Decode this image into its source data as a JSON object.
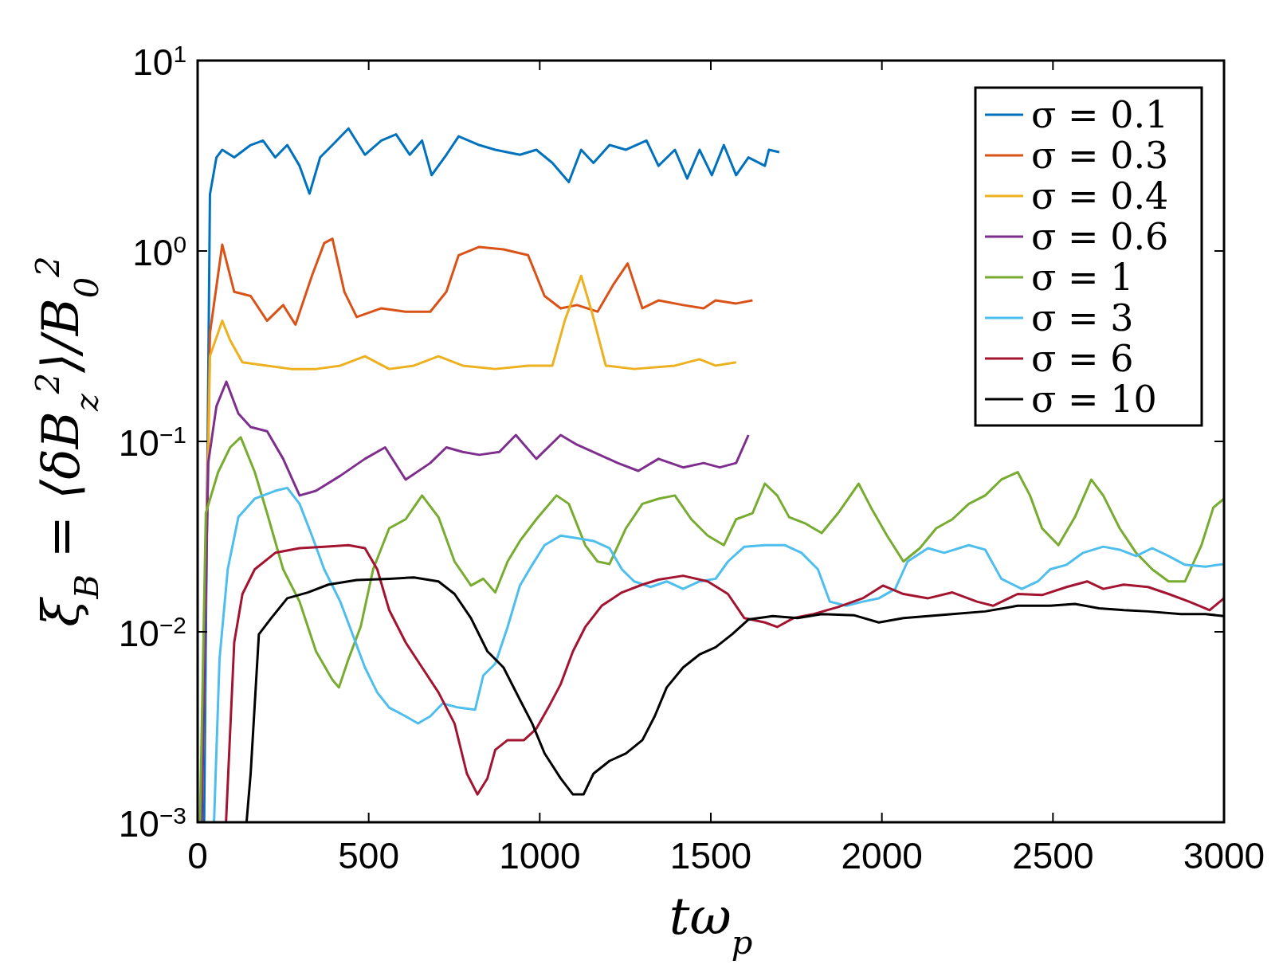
{
  "chart_data": {
    "type": "line",
    "xlabel": "tω$_{p}$",
    "ylabel": "ξ$_{B}$ = ⟨δB$_{z}$$^{2}$⟩/B$_{0}$$^{2}$",
    "log": "y",
    "legend": "top right",
    "grid": false,
    "xlim": [
      0,
      3000
    ],
    "xticks": [
      0,
      500,
      1000,
      1500,
      2000,
      2500,
      3000
    ],
    "ylim": [
      0.001,
      10
    ],
    "yticks": [
      {
        "value": 0.001,
        "label": "10$^{−3}$"
      },
      {
        "value": 0.01,
        "label": "10$^{−2}$"
      },
      {
        "value": 0.1,
        "label": "10$^{−1}$"
      },
      {
        "value": 1,
        "label": "10$^{0}$"
      },
      {
        "value": 10,
        "label": "10$^{1}$"
      }
    ],
    "series": [
      {
        "name": "σ = 0.1",
        "color": "#0072bd",
        "x": [
          19,
          36,
          55,
          72,
          107,
          155,
          191,
          227,
          262,
          298,
          327,
          358,
          394,
          441,
          489,
          537,
          580,
          620,
          656,
          684,
          727,
          763,
          823,
          870,
          942,
          990,
          1037,
          1085,
          1121,
          1157,
          1204,
          1252,
          1312,
          1347,
          1395,
          1431,
          1467,
          1503,
          1538,
          1574,
          1610,
          1658,
          1670,
          1700
        ],
        "values": [
          0.001,
          1.98,
          3.1,
          3.4,
          3.1,
          3.6,
          3.8,
          3.1,
          3.6,
          2.8,
          2.0,
          3.1,
          3.6,
          4.4,
          3.2,
          3.8,
          4.1,
          3.2,
          3.8,
          2.5,
          3.2,
          4.0,
          3.6,
          3.4,
          3.2,
          3.4,
          2.9,
          2.3,
          3.4,
          2.9,
          3.6,
          3.4,
          3.8,
          2.8,
          3.4,
          2.4,
          3.4,
          2.5,
          3.6,
          2.5,
          3.1,
          2.8,
          3.4,
          3.3
        ]
      },
      {
        "name": "σ = 0.3",
        "color": "#d95319",
        "x": [
          12,
          36,
          72,
          107,
          155,
          203,
          250,
          286,
          334,
          370,
          394,
          429,
          465,
          537,
          608,
          680,
          727,
          763,
          823,
          894,
          966,
          1014,
          1061,
          1109,
          1169,
          1216,
          1257,
          1300,
          1347,
          1419,
          1479,
          1514,
          1574,
          1622
        ],
        "values": [
          0.001,
          0.37,
          1.08,
          0.61,
          0.58,
          0.43,
          0.52,
          0.41,
          0.74,
          1.1,
          1.16,
          0.61,
          0.45,
          0.5,
          0.48,
          0.48,
          0.61,
          0.95,
          1.05,
          1.02,
          0.95,
          0.58,
          0.5,
          0.52,
          0.48,
          0.67,
          0.86,
          0.5,
          0.55,
          0.52,
          0.5,
          0.55,
          0.53,
          0.55
        ]
      },
      {
        "name": "σ = 0.4",
        "color": "#edb120",
        "x": [
          12,
          36,
          72,
          95,
          131,
          203,
          274,
          346,
          417,
          489,
          560,
          632,
          704,
          775,
          870,
          966,
          1037,
          1073,
          1121,
          1152,
          1193,
          1276,
          1395,
          1467,
          1514,
          1574
        ],
        "values": [
          0.001,
          0.28,
          0.43,
          0.34,
          0.26,
          0.25,
          0.24,
          0.24,
          0.25,
          0.28,
          0.24,
          0.25,
          0.28,
          0.25,
          0.24,
          0.25,
          0.25,
          0.43,
          0.74,
          0.48,
          0.25,
          0.24,
          0.25,
          0.27,
          0.25,
          0.26
        ]
      },
      {
        "name": "σ = 0.6",
        "color": "#7e2f8e",
        "x": [
          12,
          31,
          55,
          84,
          119,
          155,
          203,
          250,
          298,
          346,
          417,
          489,
          548,
          608,
          680,
          727,
          775,
          823,
          882,
          930,
          990,
          1061,
          1109,
          1157,
          1228,
          1288,
          1347,
          1419,
          1479,
          1526,
          1574,
          1610
        ],
        "values": [
          0.001,
          0.077,
          0.153,
          0.206,
          0.14,
          0.119,
          0.113,
          0.081,
          0.052,
          0.055,
          0.066,
          0.081,
          0.093,
          0.063,
          0.077,
          0.093,
          0.088,
          0.085,
          0.088,
          0.108,
          0.081,
          0.108,
          0.096,
          0.088,
          0.077,
          0.07,
          0.081,
          0.073,
          0.077,
          0.073,
          0.077,
          0.108
        ]
      },
      {
        "name": "σ = 1",
        "color": "#77ac30",
        "x": [
          7,
          24,
          60,
          95,
          126,
          167,
          203,
          250,
          298,
          346,
          394,
          413,
          441,
          477,
          513,
          560,
          608,
          656,
          704,
          751,
          799,
          835,
          870,
          906,
          942,
          990,
          1049,
          1085,
          1133,
          1169,
          1204,
          1252,
          1300,
          1347,
          1395,
          1443,
          1491,
          1538,
          1574,
          1622,
          1658,
          1694,
          1729,
          1777,
          1824,
          1872,
          1932,
          1968,
          2015,
          2063,
          2111,
          2159,
          2206,
          2254,
          2302,
          2349,
          2397,
          2433,
          2468,
          2516,
          2564,
          2612,
          2647,
          2695,
          2743,
          2790,
          2838,
          2886,
          2934,
          2969,
          3000
        ],
        "values": [
          0.001,
          0.042,
          0.069,
          0.093,
          0.105,
          0.069,
          0.042,
          0.0213,
          0.0144,
          0.0079,
          0.0056,
          0.0051,
          0.0072,
          0.0107,
          0.0213,
          0.035,
          0.039,
          0.052,
          0.04,
          0.0234,
          0.0175,
          0.019,
          0.0161,
          0.0234,
          0.03,
          0.039,
          0.052,
          0.047,
          0.0285,
          0.0234,
          0.0227,
          0.035,
          0.047,
          0.05,
          0.052,
          0.039,
          0.032,
          0.0285,
          0.039,
          0.042,
          0.06,
          0.052,
          0.04,
          0.037,
          0.033,
          0.042,
          0.06,
          0.045,
          0.032,
          0.0234,
          0.0275,
          0.035,
          0.039,
          0.047,
          0.052,
          0.063,
          0.069,
          0.052,
          0.035,
          0.0285,
          0.04,
          0.063,
          0.052,
          0.035,
          0.026,
          0.0213,
          0.0184,
          0.0184,
          0.0285,
          0.045,
          0.05
        ]
      },
      {
        "name": "σ = 3",
        "color": "#4dbeee",
        "x": [
          48,
          64,
          88,
          119,
          167,
          227,
          262,
          298,
          334,
          370,
          417,
          453,
          489,
          525,
          560,
          608,
          644,
          680,
          716,
          763,
          811,
          835,
          870,
          906,
          942,
          978,
          1014,
          1061,
          1109,
          1157,
          1204,
          1240,
          1276,
          1324,
          1371,
          1419,
          1467,
          1514,
          1550,
          1598,
          1658,
          1717,
          1765,
          1813,
          1848,
          1896,
          1944,
          1991,
          2039,
          2075,
          2135,
          2182,
          2254,
          2302,
          2349,
          2409,
          2456,
          2492,
          2540,
          2588,
          2647,
          2695,
          2743,
          2790,
          2838,
          2886,
          2946,
          3000
        ],
        "values": [
          0.001,
          0.0072,
          0.0213,
          0.04,
          0.05,
          0.055,
          0.057,
          0.047,
          0.032,
          0.0213,
          0.0144,
          0.0097,
          0.0065,
          0.0048,
          0.004,
          0.0036,
          0.0033,
          0.0036,
          0.0042,
          0.004,
          0.0039,
          0.0059,
          0.0068,
          0.0106,
          0.0175,
          0.0225,
          0.0285,
          0.032,
          0.031,
          0.03,
          0.0275,
          0.0213,
          0.0184,
          0.0172,
          0.0184,
          0.0168,
          0.0184,
          0.019,
          0.0234,
          0.028,
          0.0285,
          0.0285,
          0.026,
          0.0213,
          0.0144,
          0.0137,
          0.0144,
          0.015,
          0.0168,
          0.0234,
          0.0275,
          0.026,
          0.0285,
          0.027,
          0.019,
          0.0168,
          0.0184,
          0.0213,
          0.0225,
          0.026,
          0.028,
          0.027,
          0.025,
          0.0275,
          0.025,
          0.0225,
          0.022,
          0.0227
        ]
      },
      {
        "name": "σ = 6",
        "color": "#a2142f",
        "x": [
          83,
          107,
          131,
          167,
          227,
          298,
          370,
          441,
          489,
          525,
          560,
          608,
          656,
          704,
          751,
          787,
          818,
          847,
          870,
          906,
          954,
          990,
          1025,
          1061,
          1097,
          1133,
          1181,
          1240,
          1300,
          1347,
          1419,
          1491,
          1550,
          1598,
          1658,
          1694,
          1741,
          1801,
          1872,
          1944,
          2003,
          2063,
          2135,
          2206,
          2278,
          2325,
          2397,
          2468,
          2540,
          2600,
          2647,
          2707,
          2778,
          2838,
          2898,
          2958,
          3000
        ],
        "values": [
          0.001,
          0.0088,
          0.0158,
          0.0213,
          0.026,
          0.0275,
          0.028,
          0.0285,
          0.0275,
          0.0213,
          0.013,
          0.0088,
          0.0065,
          0.0048,
          0.0033,
          0.0018,
          0.0014,
          0.0017,
          0.0024,
          0.0027,
          0.0027,
          0.0031,
          0.004,
          0.0053,
          0.0079,
          0.0106,
          0.0137,
          0.0161,
          0.0177,
          0.0188,
          0.0197,
          0.0184,
          0.0158,
          0.0118,
          0.0112,
          0.0106,
          0.0118,
          0.0124,
          0.0135,
          0.015,
          0.0175,
          0.0158,
          0.015,
          0.0161,
          0.0144,
          0.0137,
          0.0158,
          0.0156,
          0.0172,
          0.0184,
          0.0168,
          0.0177,
          0.0172,
          0.0158,
          0.0144,
          0.013,
          0.015
        ]
      },
      {
        "name": "σ = 10",
        "color": "#000000",
        "x": [
          143,
          155,
          179,
          215,
          262,
          322,
          382,
          465,
          560,
          632,
          704,
          751,
          799,
          847,
          894,
          942,
          978,
          1014,
          1061,
          1097,
          1128,
          1157,
          1204,
          1252,
          1300,
          1336,
          1371,
          1419,
          1467,
          1514,
          1562,
          1610,
          1681,
          1753,
          1824,
          1920,
          1991,
          2063,
          2135,
          2206,
          2302,
          2397,
          2492,
          2564,
          2635,
          2707,
          2778,
          2874,
          2946,
          3000
        ],
        "values": [
          0.001,
          0.0018,
          0.0097,
          0.0118,
          0.015,
          0.0161,
          0.0177,
          0.0187,
          0.019,
          0.0193,
          0.0184,
          0.0158,
          0.0118,
          0.0079,
          0.0065,
          0.0044,
          0.0033,
          0.0023,
          0.0017,
          0.0014,
          0.0014,
          0.0018,
          0.0021,
          0.0023,
          0.0027,
          0.0036,
          0.0051,
          0.0065,
          0.0076,
          0.0083,
          0.0097,
          0.0116,
          0.0121,
          0.0118,
          0.0124,
          0.0122,
          0.0112,
          0.0118,
          0.0121,
          0.0124,
          0.0128,
          0.0137,
          0.0137,
          0.014,
          0.0133,
          0.013,
          0.0128,
          0.0124,
          0.0124,
          0.0121
        ]
      }
    ]
  }
}
